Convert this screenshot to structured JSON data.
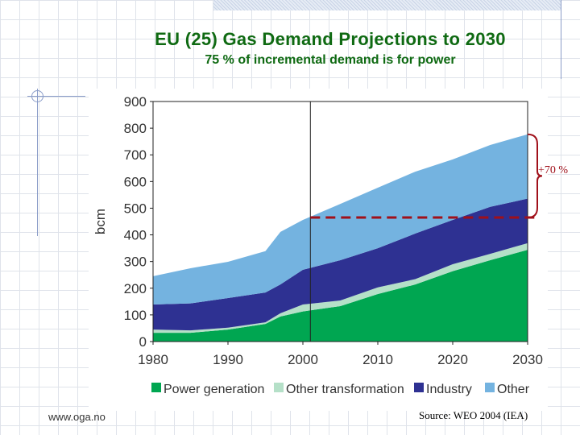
{
  "slide": {
    "title": "EU (25) Gas Demand Projections to 2030",
    "subtitle": "75 % of incremental demand is for power",
    "footer_left": "www.oga.no",
    "footer_right": "Source: WEO 2004 (IEA)"
  },
  "chart_data": {
    "type": "area",
    "stacked": true,
    "title": "EU (25) Gas Demand Projections to 2030",
    "ylabel": "bcm",
    "xlabel": "",
    "xlim": [
      1980,
      2030
    ],
    "ylim": [
      0,
      900
    ],
    "xticks": [
      1980,
      1990,
      2000,
      2010,
      2020,
      2030
    ],
    "yticks": [
      0,
      100,
      200,
      300,
      400,
      500,
      600,
      700,
      800,
      900
    ],
    "grid": false,
    "legend_position": "bottom",
    "x": [
      1980,
      1985,
      1990,
      1995,
      1997,
      2000,
      2005,
      2010,
      2015,
      2020,
      2025,
      2030
    ],
    "series": [
      {
        "name": "Power generation",
        "color": "#00a651",
        "values": [
          33,
          33,
          45,
          66,
          94,
          113,
          133,
          178,
          214,
          264,
          305,
          344
        ]
      },
      {
        "name": "Other transformation",
        "color": "#b5e0c8",
        "values": [
          12,
          9,
          7,
          6,
          12,
          26,
          21,
          25,
          20,
          26,
          24,
          25
        ]
      },
      {
        "name": "Industry",
        "color": "#2e3192",
        "values": [
          94,
          101,
          111,
          112,
          108,
          130,
          151,
          147,
          171,
          166,
          176,
          167
        ]
      },
      {
        "name": "Other",
        "color": "#74b3e0",
        "values": [
          106,
          132,
          136,
          155,
          197,
          187,
          211,
          227,
          232,
          227,
          232,
          241
        ]
      }
    ],
    "base_year_line": 2001,
    "reference_level": 465,
    "annotation": "+70 %",
    "annotation_color": "#a0101a"
  }
}
